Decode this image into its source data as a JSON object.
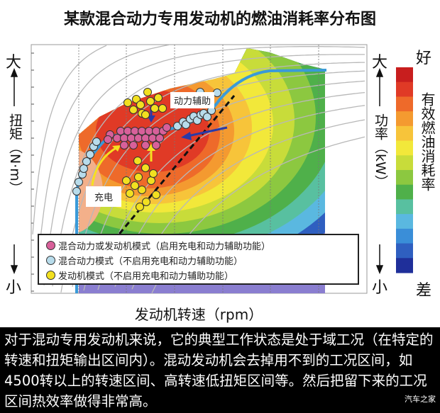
{
  "title": "某款混合动力专用发动机的燃油消耗率分布图",
  "left_axis": {
    "top": "大",
    "label": "扭矩（N·m）",
    "bottom": "小"
  },
  "right_axis": {
    "top": "大",
    "label": "功率（kW）",
    "bottom": "小"
  },
  "colorbar": {
    "top": "好",
    "label": "有效燃油消耗率",
    "bottom": "差",
    "colors": [
      "#c81e1e",
      "#e03a26",
      "#ee6a2a",
      "#f49a30",
      "#f7c43a",
      "#f2e83a",
      "#c8dc3a",
      "#8cc840",
      "#4fb04a",
      "#58c0a0",
      "#5ab8e0",
      "#3a8ed8",
      "#2f5fc0",
      "#1f2f9a"
    ]
  },
  "x_axis": {
    "label": "发动机转速（rpm）"
  },
  "annotations": {
    "assist": "动力辅助",
    "charge": "充电"
  },
  "legend": [
    {
      "label": "混合动力或发动机模式（启用充电和动力辅助功能）",
      "color": "#d8609a"
    },
    {
      "label": "混合动力模式（不启用充电和动力辅助功能）",
      "color": "#b8dceb"
    },
    {
      "label": "发动机模式（不启用充电和动力辅助功能）",
      "color": "#f2e020"
    }
  ],
  "caption": "对于混动专用发动机来说，它的典型工作状态是处于域工况（在特定的转速和扭矩输出区间内）。混动发动机会去掉用不到的工况区间，如4500转以上的转速区间、高转速低扭矩区间等。然后把留下来的工况区间热效率做得非常高。",
  "watermark": "汽车之家"
}
